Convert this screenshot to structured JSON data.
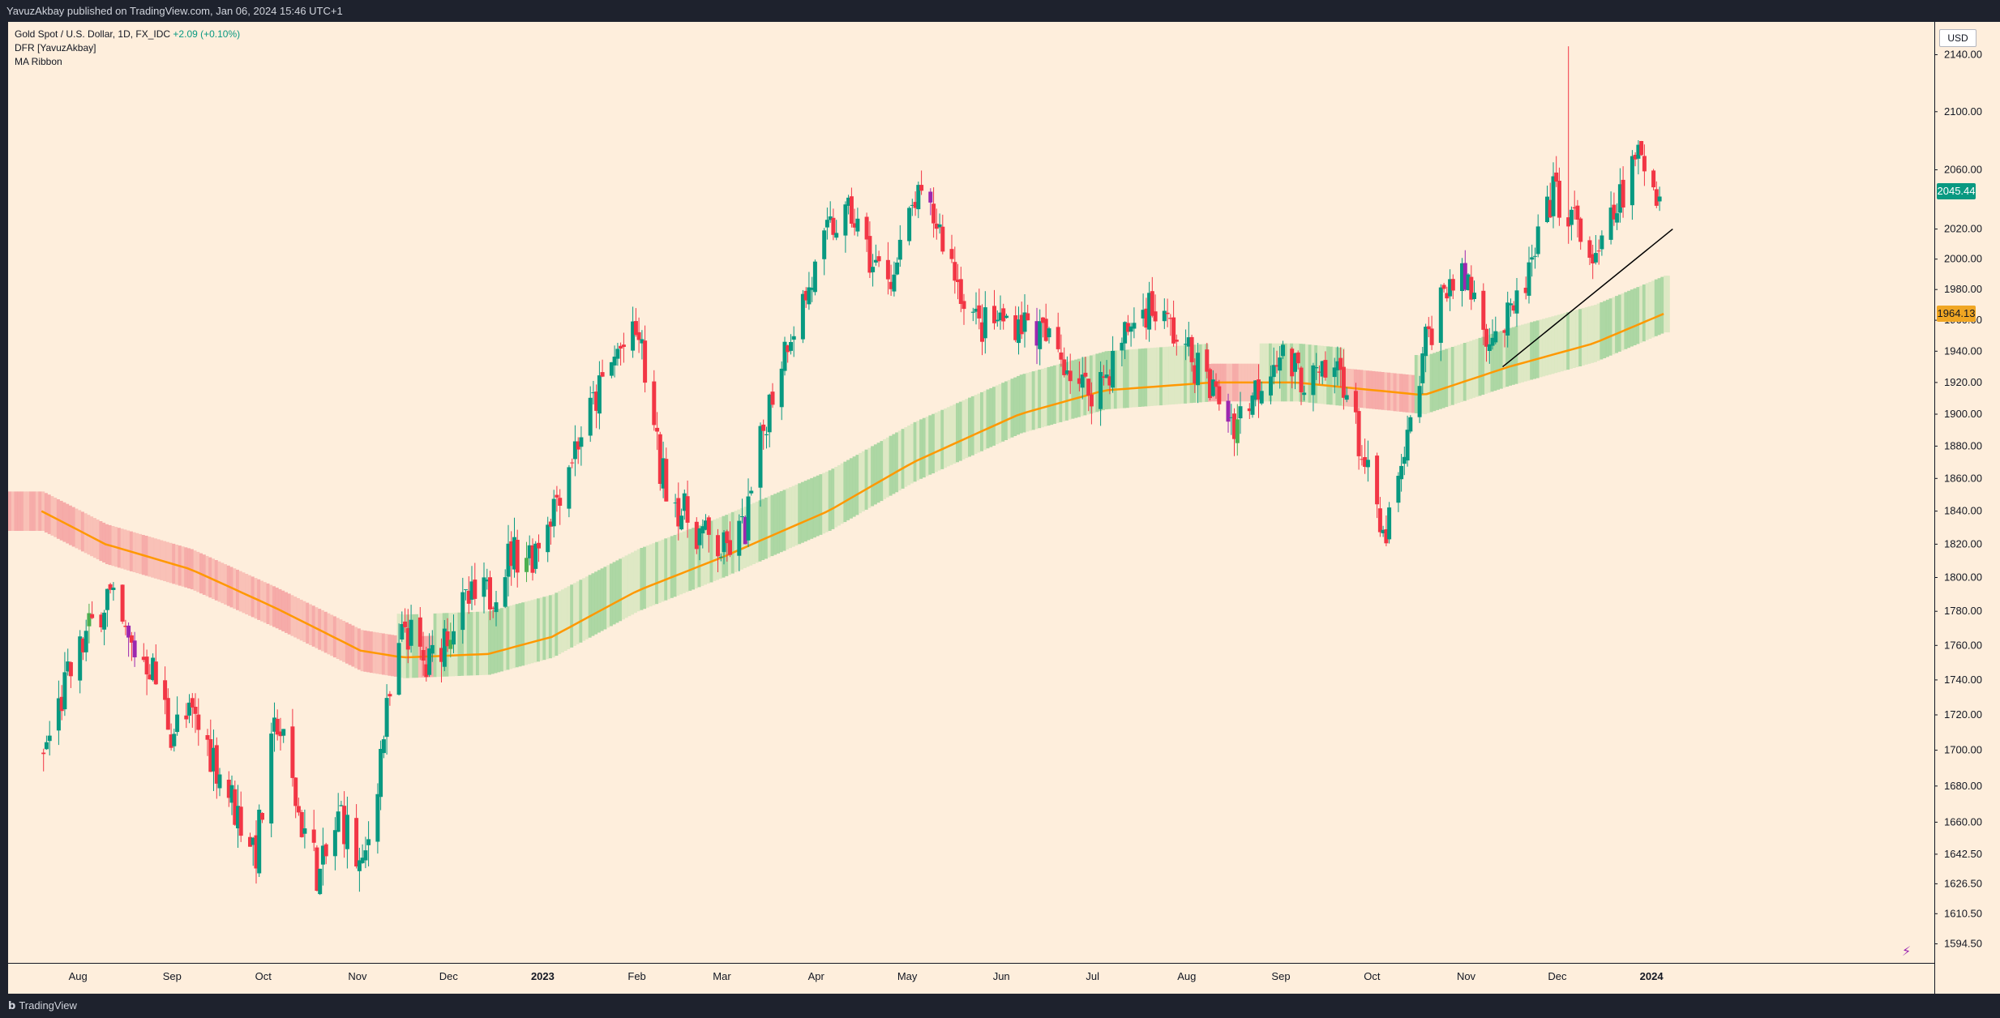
{
  "header": {
    "publish_line": "YavuzAkbay published on TradingView.com, Jan 06, 2024 15:46 UTC+1"
  },
  "legend": {
    "symbol": "Gold Spot / U.S. Dollar, 1D, FX_IDC",
    "change": "+2.09 (+0.10%)",
    "indicator1": "DFR [YavuzAkbay]",
    "indicator2": "MA Ribbon"
  },
  "price_axis": {
    "currency": "USD",
    "current_price_label": "2045.44",
    "ma_price_label": "1964.13"
  },
  "footer": {
    "brand": "TradingView"
  },
  "colors": {
    "background": "#feeedc",
    "up": "#089981",
    "down": "#f23645",
    "ma_line": "#ff9800",
    "ribbon_green": "#a5d6a7",
    "ribbon_red": "#f8a5a5",
    "trendline": "#000000"
  },
  "chart_data": {
    "type": "candlestick",
    "instrument": "Gold Spot / U.S. Dollar",
    "interval": "1D",
    "x_ticks": [
      "Aug",
      "Sep",
      "Oct",
      "Nov",
      "Dec",
      "2023",
      "Feb",
      "Mar",
      "Apr",
      "May",
      "Jun",
      "Jul",
      "Aug",
      "Sep",
      "Oct",
      "Nov",
      "Dec",
      "2024"
    ],
    "y_ticks": [
      1594.5,
      1610.5,
      1626.5,
      1642.5,
      1660,
      1680,
      1700,
      1720,
      1740,
      1760,
      1780,
      1800,
      1820,
      1840,
      1860,
      1880,
      1900,
      1920,
      1940,
      1960,
      1980,
      2000,
      2020,
      2060,
      2100,
      2140
    ],
    "y_tick_labels": [
      "1594.50",
      "1610.50",
      "1626.50",
      "1642.50",
      "1660.00",
      "1680.00",
      "1700.00",
      "1720.00",
      "1740.00",
      "1760.00",
      "1780.00",
      "1800.00",
      "1820.00",
      "1840.00",
      "1860.00",
      "1880.00",
      "1900.00",
      "1920.00",
      "1940.00",
      "1960.00",
      "1980.00",
      "2000.00",
      "2020.00",
      "2060.00",
      "2100.00",
      "2140.00"
    ],
    "ylim": [
      1580,
      2170
    ],
    "scale": "log",
    "grid": false,
    "close_path": [
      [
        "2022-07-20",
        1697
      ],
      [
        "2022-07-27",
        1735
      ],
      [
        "2022-08-03",
        1765
      ],
      [
        "2022-08-10",
        1790
      ],
      [
        "2022-08-17",
        1760
      ],
      [
        "2022-08-24",
        1750
      ],
      [
        "2022-08-31",
        1712
      ],
      [
        "2022-09-07",
        1718
      ],
      [
        "2022-09-14",
        1697
      ],
      [
        "2022-09-21",
        1668
      ],
      [
        "2022-09-28",
        1645
      ],
      [
        "2022-10-05",
        1718
      ],
      [
        "2022-10-12",
        1665
      ],
      [
        "2022-10-19",
        1630
      ],
      [
        "2022-10-26",
        1665
      ],
      [
        "2022-11-02",
        1630
      ],
      [
        "2022-11-09",
        1710
      ],
      [
        "2022-11-16",
        1772
      ],
      [
        "2022-11-23",
        1745
      ],
      [
        "2022-11-30",
        1770
      ],
      [
        "2022-12-07",
        1785
      ],
      [
        "2022-12-14",
        1790
      ],
      [
        "2022-12-21",
        1815
      ],
      [
        "2022-12-28",
        1815
      ],
      [
        "2023-01-04",
        1845
      ],
      [
        "2023-01-11",
        1880
      ],
      [
        "2023-01-18",
        1910
      ],
      [
        "2023-01-25",
        1940
      ],
      [
        "2023-02-01",
        1950
      ],
      [
        "2023-02-08",
        1865
      ],
      [
        "2023-02-15",
        1840
      ],
      [
        "2023-02-22",
        1825
      ],
      [
        "2023-03-01",
        1815
      ],
      [
        "2023-03-08",
        1830
      ],
      [
        "2023-03-15",
        1900
      ],
      [
        "2023-03-22",
        1950
      ],
      [
        "2023-03-29",
        1980
      ],
      [
        "2023-04-05",
        2020
      ],
      [
        "2023-04-12",
        2030
      ],
      [
        "2023-04-19",
        1995
      ],
      [
        "2023-04-26",
        1990
      ],
      [
        "2023-05-03",
        2040
      ],
      [
        "2023-05-10",
        2025
      ],
      [
        "2023-05-17",
        1985
      ],
      [
        "2023-05-24",
        1955
      ],
      [
        "2023-05-31",
        1960
      ],
      [
        "2023-06-07",
        1960
      ],
      [
        "2023-06-14",
        1950
      ],
      [
        "2023-06-21",
        1935
      ],
      [
        "2023-06-28",
        1915
      ],
      [
        "2023-07-05",
        1925
      ],
      [
        "2023-07-12",
        1955
      ],
      [
        "2023-07-19",
        1970
      ],
      [
        "2023-07-26",
        1955
      ],
      [
        "2023-08-02",
        1935
      ],
      [
        "2023-08-09",
        1915
      ],
      [
        "2023-08-16",
        1895
      ],
      [
        "2023-08-23",
        1915
      ],
      [
        "2023-08-30",
        1940
      ],
      [
        "2023-09-06",
        1925
      ],
      [
        "2023-09-13",
        1920
      ],
      [
        "2023-09-20",
        1930
      ],
      [
        "2023-09-27",
        1875
      ],
      [
        "2023-10-04",
        1820
      ],
      [
        "2023-10-11",
        1870
      ],
      [
        "2023-10-18",
        1945
      ],
      [
        "2023-10-25",
        1985
      ],
      [
        "2023-11-01",
        1985
      ],
      [
        "2023-11-08",
        1950
      ],
      [
        "2023-11-15",
        1960
      ],
      [
        "2023-11-22",
        1995
      ],
      [
        "2023-11-29",
        2045
      ],
      [
        "2023-12-06",
        2025
      ],
      [
        "2023-12-13",
        1995
      ],
      [
        "2023-12-20",
        2035
      ],
      [
        "2023-12-27",
        2070
      ],
      [
        "2024-01-03",
        2045
      ]
    ],
    "ma_path": [
      [
        "2022-07-20",
        1840
      ],
      [
        "2022-08-10",
        1820
      ],
      [
        "2022-09-07",
        1805
      ],
      [
        "2022-10-05",
        1782
      ],
      [
        "2022-11-02",
        1757
      ],
      [
        "2022-11-16",
        1753
      ],
      [
        "2022-12-14",
        1755
      ],
      [
        "2023-01-04",
        1765
      ],
      [
        "2023-02-01",
        1792
      ],
      [
        "2023-03-01",
        1812
      ],
      [
        "2023-04-05",
        1840
      ],
      [
        "2023-05-03",
        1870
      ],
      [
        "2023-06-07",
        1900
      ],
      [
        "2023-07-05",
        1915
      ],
      [
        "2023-08-09",
        1920
      ],
      [
        "2023-09-06",
        1920
      ],
      [
        "2023-10-18",
        1912
      ],
      [
        "2023-11-15",
        1930
      ],
      [
        "2023-12-13",
        1945
      ],
      [
        "2024-01-05",
        1964.13
      ]
    ],
    "trendline": [
      [
        "2023-11-13",
        1930
      ],
      [
        "2024-01-08",
        2020
      ]
    ],
    "last_price": 2045.44,
    "ma_last": 1964.13,
    "high_marked": 2146
  }
}
